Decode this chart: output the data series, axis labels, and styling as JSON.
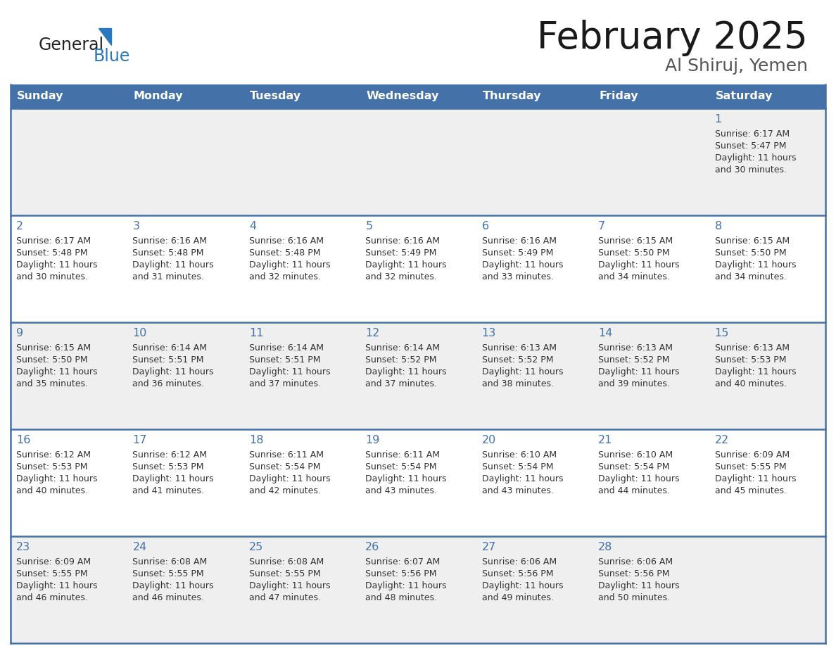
{
  "title": "February 2025",
  "subtitle": "Al Shiruj, Yemen",
  "days_of_week": [
    "Sunday",
    "Monday",
    "Tuesday",
    "Wednesday",
    "Thursday",
    "Friday",
    "Saturday"
  ],
  "header_bg": "#4472a8",
  "header_text": "#ffffff",
  "cell_bg_odd": "#efefef",
  "cell_bg_even": "#ffffff",
  "separator_color": "#4472a8",
  "text_color": "#333333",
  "number_color": "#4472a8",
  "logo_general_color": "#222222",
  "logo_blue_color": "#2979c0",
  "calendar_data": [
    {
      "day": 1,
      "col": 6,
      "row": 0,
      "sunrise": "6:17 AM",
      "sunset": "5:47 PM",
      "daylight": "11 hours and 30 minutes"
    },
    {
      "day": 2,
      "col": 0,
      "row": 1,
      "sunrise": "6:17 AM",
      "sunset": "5:48 PM",
      "daylight": "11 hours and 30 minutes"
    },
    {
      "day": 3,
      "col": 1,
      "row": 1,
      "sunrise": "6:16 AM",
      "sunset": "5:48 PM",
      "daylight": "11 hours and 31 minutes"
    },
    {
      "day": 4,
      "col": 2,
      "row": 1,
      "sunrise": "6:16 AM",
      "sunset": "5:48 PM",
      "daylight": "11 hours and 32 minutes"
    },
    {
      "day": 5,
      "col": 3,
      "row": 1,
      "sunrise": "6:16 AM",
      "sunset": "5:49 PM",
      "daylight": "11 hours and 32 minutes"
    },
    {
      "day": 6,
      "col": 4,
      "row": 1,
      "sunrise": "6:16 AM",
      "sunset": "5:49 PM",
      "daylight": "11 hours and 33 minutes"
    },
    {
      "day": 7,
      "col": 5,
      "row": 1,
      "sunrise": "6:15 AM",
      "sunset": "5:50 PM",
      "daylight": "11 hours and 34 minutes"
    },
    {
      "day": 8,
      "col": 6,
      "row": 1,
      "sunrise": "6:15 AM",
      "sunset": "5:50 PM",
      "daylight": "11 hours and 34 minutes"
    },
    {
      "day": 9,
      "col": 0,
      "row": 2,
      "sunrise": "6:15 AM",
      "sunset": "5:50 PM",
      "daylight": "11 hours and 35 minutes"
    },
    {
      "day": 10,
      "col": 1,
      "row": 2,
      "sunrise": "6:14 AM",
      "sunset": "5:51 PM",
      "daylight": "11 hours and 36 minutes"
    },
    {
      "day": 11,
      "col": 2,
      "row": 2,
      "sunrise": "6:14 AM",
      "sunset": "5:51 PM",
      "daylight": "11 hours and 37 minutes"
    },
    {
      "day": 12,
      "col": 3,
      "row": 2,
      "sunrise": "6:14 AM",
      "sunset": "5:52 PM",
      "daylight": "11 hours and 37 minutes"
    },
    {
      "day": 13,
      "col": 4,
      "row": 2,
      "sunrise": "6:13 AM",
      "sunset": "5:52 PM",
      "daylight": "11 hours and 38 minutes"
    },
    {
      "day": 14,
      "col": 5,
      "row": 2,
      "sunrise": "6:13 AM",
      "sunset": "5:52 PM",
      "daylight": "11 hours and 39 minutes"
    },
    {
      "day": 15,
      "col": 6,
      "row": 2,
      "sunrise": "6:13 AM",
      "sunset": "5:53 PM",
      "daylight": "11 hours and 40 minutes"
    },
    {
      "day": 16,
      "col": 0,
      "row": 3,
      "sunrise": "6:12 AM",
      "sunset": "5:53 PM",
      "daylight": "11 hours and 40 minutes"
    },
    {
      "day": 17,
      "col": 1,
      "row": 3,
      "sunrise": "6:12 AM",
      "sunset": "5:53 PM",
      "daylight": "11 hours and 41 minutes"
    },
    {
      "day": 18,
      "col": 2,
      "row": 3,
      "sunrise": "6:11 AM",
      "sunset": "5:54 PM",
      "daylight": "11 hours and 42 minutes"
    },
    {
      "day": 19,
      "col": 3,
      "row": 3,
      "sunrise": "6:11 AM",
      "sunset": "5:54 PM",
      "daylight": "11 hours and 43 minutes"
    },
    {
      "day": 20,
      "col": 4,
      "row": 3,
      "sunrise": "6:10 AM",
      "sunset": "5:54 PM",
      "daylight": "11 hours and 43 minutes"
    },
    {
      "day": 21,
      "col": 5,
      "row": 3,
      "sunrise": "6:10 AM",
      "sunset": "5:54 PM",
      "daylight": "11 hours and 44 minutes"
    },
    {
      "day": 22,
      "col": 6,
      "row": 3,
      "sunrise": "6:09 AM",
      "sunset": "5:55 PM",
      "daylight": "11 hours and 45 minutes"
    },
    {
      "day": 23,
      "col": 0,
      "row": 4,
      "sunrise": "6:09 AM",
      "sunset": "5:55 PM",
      "daylight": "11 hours and 46 minutes"
    },
    {
      "day": 24,
      "col": 1,
      "row": 4,
      "sunrise": "6:08 AM",
      "sunset": "5:55 PM",
      "daylight": "11 hours and 46 minutes"
    },
    {
      "day": 25,
      "col": 2,
      "row": 4,
      "sunrise": "6:08 AM",
      "sunset": "5:55 PM",
      "daylight": "11 hours and 47 minutes"
    },
    {
      "day": 26,
      "col": 3,
      "row": 4,
      "sunrise": "6:07 AM",
      "sunset": "5:56 PM",
      "daylight": "11 hours and 48 minutes"
    },
    {
      "day": 27,
      "col": 4,
      "row": 4,
      "sunrise": "6:06 AM",
      "sunset": "5:56 PM",
      "daylight": "11 hours and 49 minutes"
    },
    {
      "day": 28,
      "col": 5,
      "row": 4,
      "sunrise": "6:06 AM",
      "sunset": "5:56 PM",
      "daylight": "11 hours and 50 minutes"
    }
  ]
}
